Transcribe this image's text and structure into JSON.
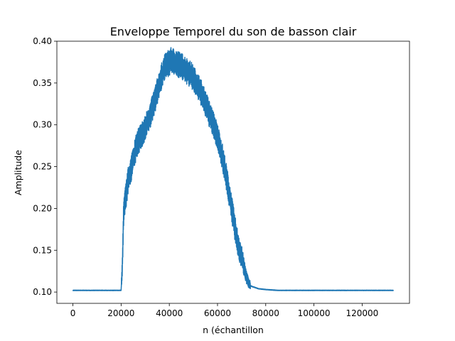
{
  "chart_data": {
    "type": "line",
    "title": "Enveloppe Temporel du son de basson clair",
    "xlabel": "n (échantillon",
    "ylabel": "Amplitude",
    "xlim": [
      -6650,
      139650
    ],
    "ylim": [
      0.0865,
      0.4
    ],
    "x_ticks": [
      0,
      20000,
      40000,
      60000,
      80000,
      100000,
      120000
    ],
    "x_tick_labels": [
      "0",
      "20000",
      "40000",
      "60000",
      "80000",
      "100000",
      "120000"
    ],
    "y_ticks": [
      0.1,
      0.15,
      0.2,
      0.25,
      0.3,
      0.35,
      0.4
    ],
    "y_tick_labels": [
      "0.10",
      "0.15",
      "0.20",
      "0.25",
      "0.30",
      "0.35",
      "0.40"
    ],
    "grid": false,
    "line_color": "#1f77b4",
    "series": [
      {
        "x": [
          0,
          5000,
          10000,
          15000,
          20000,
          20500,
          21000,
          21500,
          22000,
          23000,
          24000,
          25000,
          26000,
          27000,
          28000,
          29000,
          30000,
          31000,
          32000,
          33000,
          34000,
          35000,
          36000,
          37000,
          38000,
          39000,
          40000,
          41000,
          42000,
          43000,
          44000,
          45000,
          46000,
          47000,
          48000,
          49000,
          50000,
          51000,
          52000,
          53000,
          54000,
          55000,
          56000,
          57000,
          58000,
          59000,
          60000,
          61000,
          62000,
          63000,
          64000,
          65000,
          66000,
          67000,
          68000,
          69000,
          70000,
          71000,
          72000,
          73000,
          74000,
          75000,
          77000,
          80000,
          85000,
          90000,
          95000,
          100000,
          105000,
          110000,
          115000,
          120000,
          125000,
          130000,
          133000
        ],
        "y": [
          0.102,
          0.102,
          0.102,
          0.102,
          0.102,
          0.13,
          0.19,
          0.205,
          0.215,
          0.235,
          0.245,
          0.26,
          0.27,
          0.28,
          0.285,
          0.29,
          0.295,
          0.305,
          0.31,
          0.32,
          0.33,
          0.34,
          0.35,
          0.36,
          0.368,
          0.372,
          0.375,
          0.377,
          0.375,
          0.374,
          0.372,
          0.37,
          0.368,
          0.365,
          0.362,
          0.36,
          0.355,
          0.35,
          0.345,
          0.34,
          0.332,
          0.325,
          0.318,
          0.31,
          0.302,
          0.295,
          0.285,
          0.275,
          0.262,
          0.248,
          0.232,
          0.215,
          0.198,
          0.18,
          0.163,
          0.152,
          0.142,
          0.13,
          0.118,
          0.11,
          0.107,
          0.106,
          0.104,
          0.103,
          0.102,
          0.102,
          0.102,
          0.102,
          0.102,
          0.102,
          0.102,
          0.102,
          0.102,
          0.102,
          0.102
        ]
      }
    ]
  }
}
